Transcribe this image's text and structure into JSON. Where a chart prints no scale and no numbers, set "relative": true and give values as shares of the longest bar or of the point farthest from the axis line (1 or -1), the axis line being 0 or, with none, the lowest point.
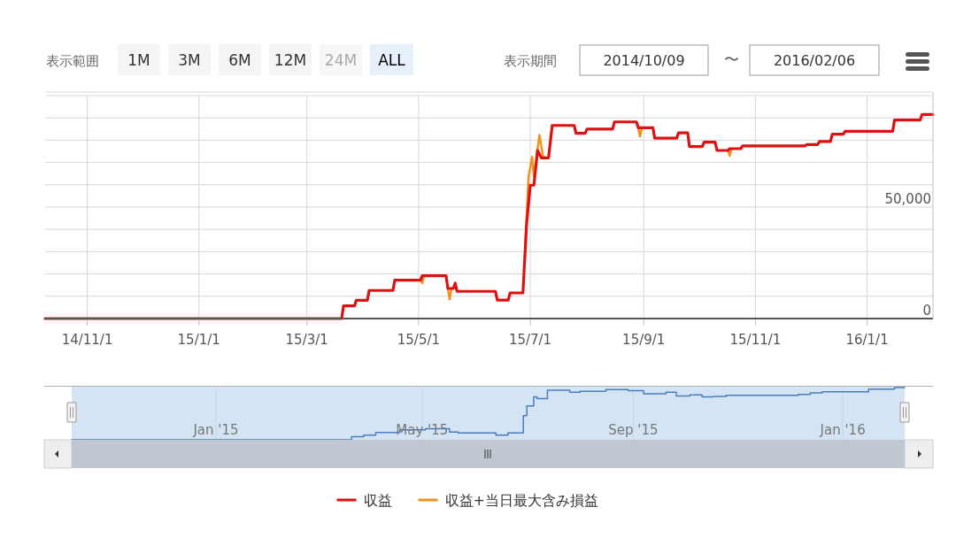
{
  "chart_data": [
    {
      "type": "line",
      "annotations": [
        "表示範囲",
        "1M",
        "3M",
        "6M",
        "12M",
        "24M",
        "ALL",
        "表示期間",
        "2014/10/09",
        "〜",
        "2016/02/06"
      ],
      "xlim": [
        "2014-10-09",
        "2016-02-06"
      ],
      "xticks": [
        {
          "value": "2014-11-01",
          "label": "14/11/1"
        },
        {
          "value": "2015-01-01",
          "label": "15/1/1"
        },
        {
          "value": "2015-03-01",
          "label": "15/3/1"
        },
        {
          "value": "2015-05-01",
          "label": "15/5/1"
        },
        {
          "value": "2015-07-01",
          "label": "15/7/1"
        },
        {
          "value": "2015-09-01",
          "label": "15/9/1"
        },
        {
          "value": "2015-11-01",
          "label": "15/11/1"
        },
        {
          "value": "2016-01-01",
          "label": "16/1/1"
        }
      ],
      "ylim": [
        0,
        100000
      ],
      "yticks": [
        0,
        {
          "value": 10000,
          "label": null
        },
        {
          "value": 20000,
          "label": null
        },
        {
          "value": 30000,
          "label": null
        },
        {
          "value": 40000,
          "label": null
        },
        {
          "value": 50000,
          "label": "50,000"
        },
        {
          "value": 60000,
          "label": null
        },
        {
          "value": 70000,
          "label": null
        },
        {
          "value": 80000,
          "label": null
        },
        {
          "value": 90000,
          "label": null
        },
        {
          "value": 100000,
          "label": null
        }
      ],
      "grid": true,
      "legend": "bottom",
      "marker": "none",
      "series": [
        {
          "name": "収益+当日最大含み損益",
          "color": "#f0921e",
          "x": [
            "2015-05-02",
            "2015-05-03",
            "2015-05-04",
            "2015-05-10",
            "2015-05-17",
            "2015-05-18",
            "2015-05-19",
            "2015-06-01",
            "2015-06-28",
            "2015-06-29",
            "2015-06-30",
            "2015-07-02",
            "2015-07-03",
            "2015-07-06",
            "2015-07-08",
            "2015-07-09",
            "2015-08-10",
            "2015-08-29",
            "2015-08-30",
            "2015-08-31",
            "2015-09-10",
            "2015-10-17",
            "2015-10-18",
            "2015-10-19"
          ],
          "values": [
            17200,
            15900,
            19200,
            null,
            13500,
            8600,
            13500,
            null,
            27000,
            45000,
            63000,
            72500,
            63600,
            82300,
            72700,
            72100,
            null,
            85600,
            81700,
            85600,
            null,
            75400,
            73000,
            76200
          ]
        },
        {
          "name": "収益",
          "color": "#dd1111",
          "x": [
            "2014-10-09",
            "2015-03-20",
            "2015-03-21",
            "2015-03-27",
            "2015-03-28",
            "2015-04-03",
            "2015-04-04",
            "2015-04-17",
            "2015-04-18",
            "2015-05-02",
            "2015-05-03",
            "2015-05-16",
            "2015-05-17",
            "2015-05-20",
            "2015-05-21",
            "2015-05-22",
            "2015-06-12",
            "2015-06-13",
            "2015-06-19",
            "2015-06-20",
            "2015-06-27",
            "2015-06-29",
            "2015-07-01",
            "2015-07-03",
            "2015-07-05",
            "2015-07-07",
            "2015-07-11",
            "2015-07-13",
            "2015-07-25",
            "2015-07-26",
            "2015-07-31",
            "2015-08-01",
            "2015-08-15",
            "2015-08-16",
            "2015-08-28",
            "2015-08-29",
            "2015-09-06",
            "2015-09-07",
            "2015-09-19",
            "2015-09-20",
            "2015-09-25",
            "2015-09-26",
            "2015-10-03",
            "2015-10-04",
            "2015-10-10",
            "2015-10-11",
            "2015-10-17",
            "2015-10-18",
            "2015-10-24",
            "2015-10-25",
            "2015-11-28",
            "2015-11-29",
            "2015-12-05",
            "2015-12-06",
            "2015-12-12",
            "2015-12-13",
            "2015-12-19",
            "2015-12-20",
            "2016-01-15",
            "2016-01-16",
            "2016-01-30",
            "2016-01-31",
            "2016-02-06"
          ],
          "values": [
            0,
            0,
            5700,
            5700,
            8200,
            8200,
            12600,
            12600,
            17200,
            17200,
            19200,
            19200,
            13500,
            13500,
            15900,
            12200,
            12200,
            8300,
            8300,
            11500,
            11500,
            42300,
            59800,
            59900,
            75400,
            72100,
            72100,
            86600,
            86600,
            83100,
            83100,
            85000,
            85000,
            88200,
            88200,
            85600,
            85600,
            80900,
            80900,
            83300,
            83300,
            77100,
            77100,
            79100,
            79100,
            75400,
            75400,
            76200,
            76200,
            77400,
            77400,
            78000,
            78000,
            79400,
            79400,
            82700,
            82700,
            84000,
            84000,
            89000,
            89000,
            91500,
            91500
          ]
        }
      ]
    },
    {
      "type": "step",
      "relative": true,
      "grid": "x",
      "xlim": [
        "2014-10-09",
        "2016-02-06"
      ],
      "xticks": [
        {
          "value": "2015-01-01",
          "label": "Jan '15"
        },
        {
          "value": "2015-05-01",
          "label": "May '15"
        },
        {
          "value": "2015-09-01",
          "label": "Sep '15"
        },
        {
          "value": "2016-01-01",
          "label": "Jan '16"
        }
      ],
      "series": [
        {
          "color": "#4a7ebb",
          "x": [
            "2014-10-09",
            "2015-03-21",
            "2015-03-28",
            "2015-04-04",
            "2015-04-18",
            "2015-05-03",
            "2015-05-17",
            "2015-05-22",
            "2015-06-13",
            "2015-06-20",
            "2015-06-29",
            "2015-07-01",
            "2015-07-05",
            "2015-07-07",
            "2015-07-13",
            "2015-07-26",
            "2015-08-01",
            "2015-08-16",
            "2015-08-29",
            "2015-09-07",
            "2015-09-20",
            "2015-09-26",
            "2015-10-04",
            "2015-10-11",
            "2015-10-18",
            "2015-10-25",
            "2015-11-29",
            "2015-12-06",
            "2015-12-13",
            "2015-12-20",
            "2016-01-16",
            "2016-01-31",
            "2016-02-06"
          ],
          "values": [
            0,
            0.06,
            0.09,
            0.14,
            0.19,
            0.21,
            0.15,
            0.13,
            0.09,
            0.13,
            0.46,
            0.65,
            0.82,
            0.79,
            0.95,
            0.91,
            0.93,
            0.96,
            0.94,
            0.88,
            0.91,
            0.84,
            0.86,
            0.82,
            0.83,
            0.85,
            0.85,
            0.87,
            0.9,
            0.92,
            0.97,
            1,
            1
          ]
        }
      ]
    }
  ]
}
